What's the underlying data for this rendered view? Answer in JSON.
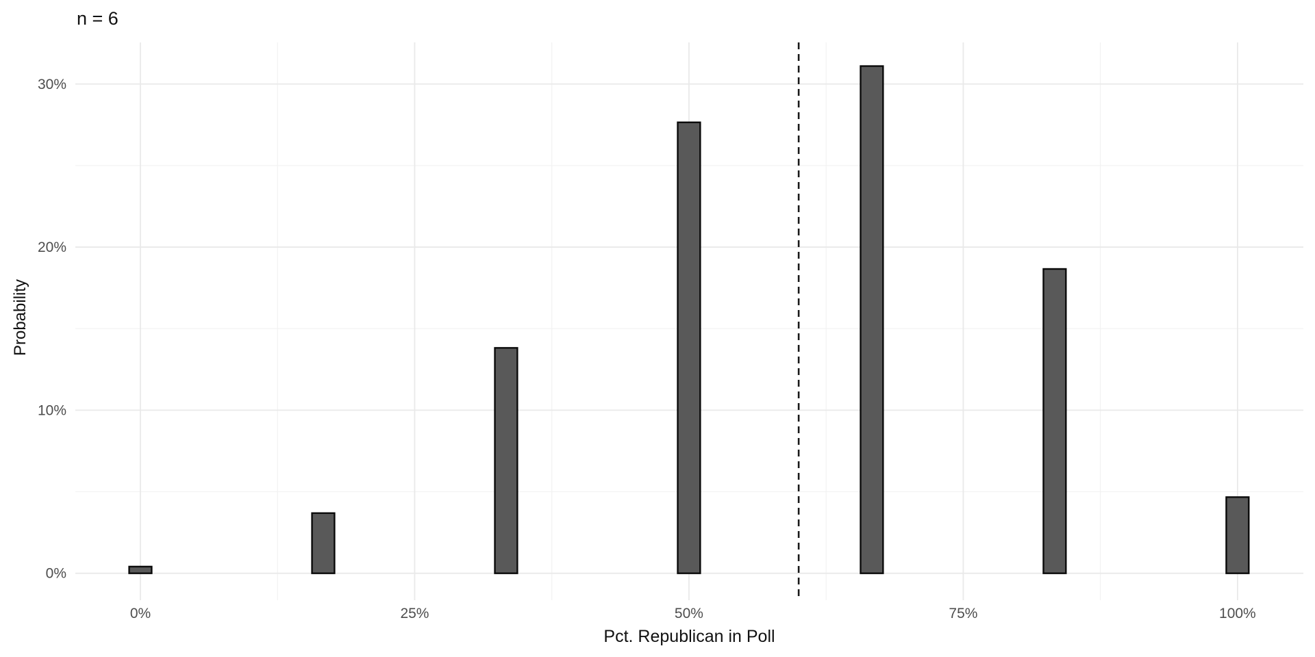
{
  "title": "n = 6",
  "chart_data": {
    "type": "bar",
    "title": "n = 6",
    "xlabel": "Pct. Republican in Poll",
    "ylabel": "Probability",
    "categories_pct": [
      0,
      16.6667,
      33.3333,
      50,
      66.6667,
      83.3333,
      100
    ],
    "values_pct": [
      0.41,
      3.69,
      13.82,
      27.65,
      31.1,
      18.66,
      4.67
    ],
    "bar_width_pct": 2.05,
    "vline_x_pct": 60,
    "vline_style": "dashed",
    "x_tick_values": [
      0,
      25,
      50,
      75,
      100
    ],
    "x_tick_labels": [
      "0%",
      "25%",
      "50%",
      "75%",
      "100%"
    ],
    "x_minor_values": [
      12.5,
      37.5,
      62.5,
      87.5
    ],
    "y_tick_values": [
      0,
      10,
      20,
      30
    ],
    "y_tick_labels": [
      "0%",
      "10%",
      "20%",
      "30%"
    ],
    "y_minor_values": [
      5,
      15,
      25
    ],
    "xlim": [
      -5.93,
      106.0
    ],
    "ylim": [
      -1.65,
      32.55
    ],
    "grid": true,
    "legend_position": "none",
    "colors": {
      "background": "#ffffff",
      "bar_fill": "#595959",
      "bar_stroke": "#0a0a0a",
      "grid_major": "#e9e9e9",
      "grid_minor": "#f2f2f2",
      "vline": "#1a1a1a",
      "tick_label": "#4d4d4d",
      "axis_title": "#111111"
    }
  }
}
